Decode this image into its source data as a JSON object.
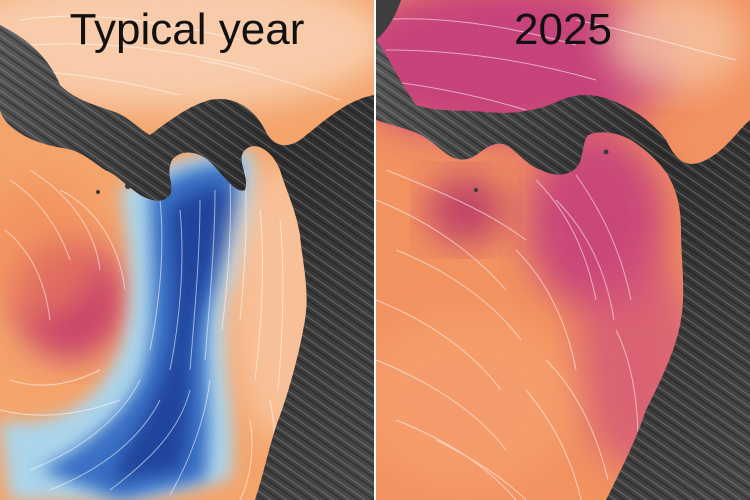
{
  "panels": [
    {
      "title": "Typical year",
      "colors": {
        "warm": "#f4a46b",
        "hot": "#c0306a",
        "cool": "#3a6fc4",
        "cold": "#1f3f99",
        "ice": "#a8d8f2",
        "pale": "#f9d3b6"
      }
    },
    {
      "title": "2025",
      "colors": {
        "warm": "#f29260",
        "hot": "#c23a7e",
        "pale": "#f6c6a6"
      }
    }
  ],
  "land_color": "#3a3a3a"
}
